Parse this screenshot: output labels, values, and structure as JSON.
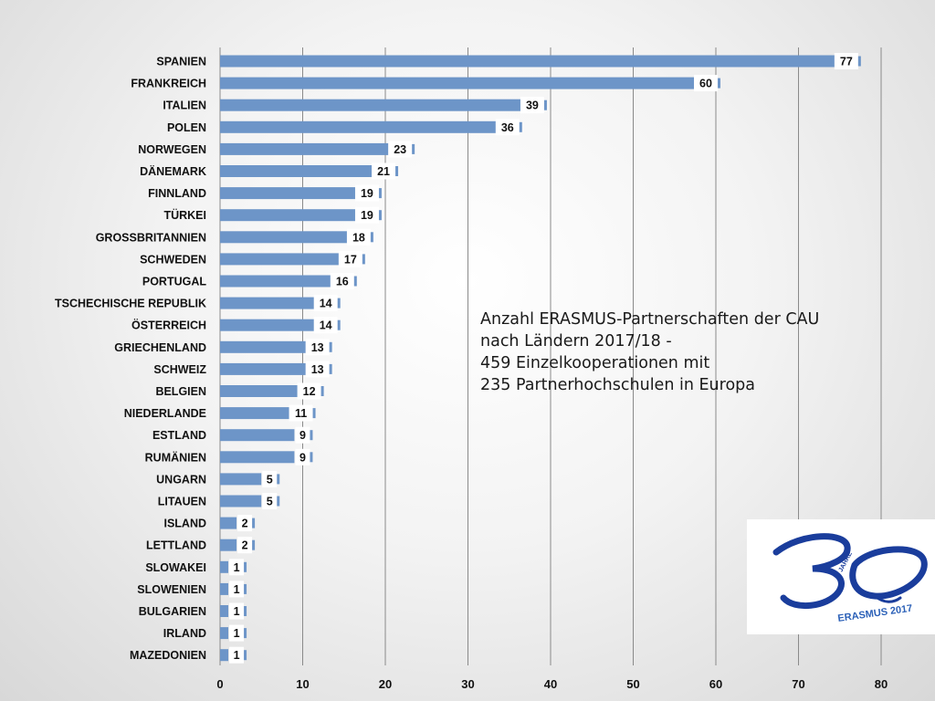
{
  "chart_data": {
    "type": "bar",
    "orientation": "horizontal",
    "categories": [
      "SPANIEN",
      "FRANKREICH",
      "ITALIEN",
      "POLEN",
      "NORWEGEN",
      "DÄNEMARK",
      "FINNLAND",
      "TÜRKEI",
      "GROSSBRITANNIEN",
      "SCHWEDEN",
      "PORTUGAL",
      "TSCHECHISCHE REPUBLIK",
      "ÖSTERREICH",
      "GRIECHENLAND",
      "SCHWEIZ",
      "BELGIEN",
      "NIEDERLANDE",
      "ESTLAND",
      "RUMÄNIEN",
      "UNGARN",
      "LITAUEN",
      "ISLAND",
      "LETTLAND",
      "SLOWAKEI",
      "SLOWENIEN",
      "BULGARIEN",
      "IRLAND",
      "MAZEDONIEN"
    ],
    "values": [
      77,
      60,
      39,
      36,
      23,
      21,
      19,
      19,
      18,
      17,
      16,
      14,
      14,
      13,
      13,
      12,
      11,
      9,
      9,
      5,
      5,
      2,
      2,
      1,
      1,
      1,
      1,
      1
    ],
    "xlim": [
      0,
      80
    ],
    "xticks": [
      0,
      10,
      20,
      30,
      40,
      50,
      60,
      70,
      80
    ],
    "grid": true,
    "bar_color": "#6d95c8"
  },
  "annotation": {
    "lines": [
      "Anzahl ERASMUS-Partnerschaften der CAU",
      "nach Ländern 2017/18 -",
      "459 Einzelkooperationen  mit",
      "235 Partnerhochschulen  in Europa"
    ]
  },
  "logo": {
    "numeral": "30",
    "small_text": "JAHRE",
    "caption": "ERASMUS 2017",
    "color": "#1a3d9c"
  }
}
